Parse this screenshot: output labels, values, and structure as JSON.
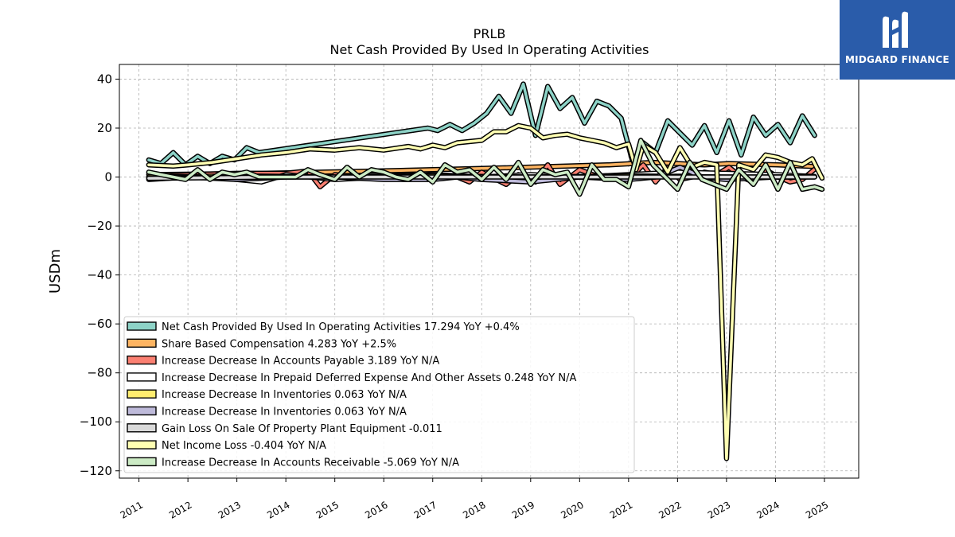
{
  "brand": {
    "name": "MIDGARD FINANCE",
    "color": "#2a5caa"
  },
  "chart_data": {
    "type": "line",
    "title": "PRLB",
    "subtitle": "Net Cash Provided By Used In Operating Activities",
    "ylabel": "USDm",
    "xlabel": "",
    "ylim": [
      -123,
      46
    ],
    "xlim": [
      2010.6,
      2025.7
    ],
    "yticks": [
      40,
      20,
      0,
      -20,
      -40,
      -60,
      -80,
      -100,
      -120
    ],
    "ytick_labels": [
      "40",
      "20",
      "0",
      "−20",
      "−40",
      "−60",
      "−80",
      "−100",
      "−120"
    ],
    "xticks": [
      2011,
      2012,
      2013,
      2014,
      2015,
      2016,
      2017,
      2018,
      2019,
      2020,
      2021,
      2022,
      2023,
      2024,
      2025
    ],
    "xtick_labels": [
      "2011",
      "2012",
      "2013",
      "2014",
      "2015",
      "2016",
      "2017",
      "2018",
      "2019",
      "2020",
      "2021",
      "2022",
      "2023",
      "2024",
      "2025"
    ],
    "grid": true,
    "legend_position": "lower-left",
    "series": [
      {
        "label": "Net Cash Provided By Used In Operating Activities  17.294 YoY +0.4%",
        "color": "#8dd3c7",
        "points": [
          [
            2011.2,
            7
          ],
          [
            2011.45,
            5.5
          ],
          [
            2011.7,
            10
          ],
          [
            2011.95,
            5
          ],
          [
            2012.2,
            8.5
          ],
          [
            2012.45,
            5.5
          ],
          [
            2012.7,
            8.5
          ],
          [
            2012.95,
            7
          ],
          [
            2013.2,
            12
          ],
          [
            2013.45,
            10
          ],
          [
            2016.9,
            20
          ],
          [
            2017.1,
            19
          ],
          [
            2017.35,
            21.5
          ],
          [
            2017.6,
            19
          ],
          [
            2017.85,
            22
          ],
          [
            2018.1,
            26
          ],
          [
            2018.35,
            33
          ],
          [
            2018.6,
            26
          ],
          [
            2018.85,
            38
          ],
          [
            2019.1,
            17
          ],
          [
            2019.35,
            37
          ],
          [
            2019.6,
            28
          ],
          [
            2019.85,
            32.5
          ],
          [
            2020.1,
            22
          ],
          [
            2020.35,
            31
          ],
          [
            2020.6,
            29
          ],
          [
            2020.85,
            24
          ],
          [
            2021.1,
            5
          ],
          [
            2021.3,
            14
          ],
          [
            2021.55,
            10
          ],
          [
            2021.8,
            23
          ],
          [
            2022.05,
            18
          ],
          [
            2022.3,
            13
          ],
          [
            2022.55,
            21
          ],
          [
            2022.8,
            10
          ],
          [
            2023.05,
            23
          ],
          [
            2023.3,
            9
          ],
          [
            2023.55,
            24.5
          ],
          [
            2023.8,
            17
          ],
          [
            2024.05,
            21.5
          ],
          [
            2024.3,
            14
          ],
          [
            2024.55,
            25
          ],
          [
            2024.8,
            17
          ]
        ]
      },
      {
        "label": "Share Based Compensation  4.283 YoY +2.5%",
        "color": "#fdb462",
        "points": [
          [
            2011.2,
            1
          ],
          [
            2013.5,
            1.5
          ],
          [
            2016,
            2.5
          ],
          [
            2018,
            3.5
          ],
          [
            2020.6,
            5
          ],
          [
            2021.5,
            6
          ],
          [
            2022.55,
            5
          ],
          [
            2023.05,
            5.5
          ],
          [
            2024.05,
            5
          ],
          [
            2024.8,
            4.3
          ]
        ]
      },
      {
        "label": "Increase Decrease In Accounts Payable  3.189 YoY N/A",
        "color": "#fb8072",
        "points": [
          [
            2011.2,
            0
          ],
          [
            2012,
            1
          ],
          [
            2013,
            1.5
          ],
          [
            2014,
            1.5
          ],
          [
            2014.45,
            2.5
          ],
          [
            2014.7,
            -4
          ],
          [
            2015,
            1
          ],
          [
            2015.5,
            0
          ],
          [
            2016.5,
            1
          ],
          [
            2017.5,
            0
          ],
          [
            2017.75,
            -2
          ],
          [
            2018,
            2
          ],
          [
            2018.5,
            -3
          ],
          [
            2018.75,
            1
          ],
          [
            2019.1,
            -2
          ],
          [
            2019.35,
            5
          ],
          [
            2019.6,
            -3
          ],
          [
            2020,
            3
          ],
          [
            2020.4,
            0
          ],
          [
            2020.85,
            -1
          ],
          [
            2021.1,
            1
          ],
          [
            2021.3,
            5
          ],
          [
            2021.55,
            -2
          ],
          [
            2021.8,
            4
          ],
          [
            2022.05,
            -1
          ],
          [
            2022.3,
            0
          ],
          [
            2022.55,
            2
          ],
          [
            2022.8,
            1
          ],
          [
            2023.05,
            4
          ],
          [
            2023.3,
            0
          ],
          [
            2023.55,
            -2
          ],
          [
            2023.8,
            3
          ],
          [
            2024.05,
            0
          ],
          [
            2024.3,
            -2
          ],
          [
            2024.55,
            -1
          ],
          [
            2024.8,
            3.2
          ]
        ]
      },
      {
        "label": "Increase Decrease In Prepaid Deferred Expense And Other Assets  0.248 YoY N/A",
        "color": "#ffffff",
        "points": [
          [
            2011.2,
            0
          ],
          [
            2012.5,
            0
          ],
          [
            2013,
            -1
          ],
          [
            2013.5,
            -2
          ],
          [
            2014,
            1
          ],
          [
            2015,
            -1
          ],
          [
            2016,
            0
          ],
          [
            2017,
            1
          ],
          [
            2018,
            0
          ],
          [
            2019,
            1
          ],
          [
            2020,
            0
          ],
          [
            2021,
            1
          ],
          [
            2022,
            2
          ],
          [
            2023,
            1.5
          ],
          [
            2024,
            1
          ],
          [
            2024.8,
            0.25
          ]
        ]
      },
      {
        "label": "Increase Decrease In Inventories  0.063 YoY N/A",
        "color": "#ffed6f",
        "points": [
          [
            2011.2,
            0
          ],
          [
            2013,
            0.5
          ],
          [
            2015,
            0
          ],
          [
            2017,
            0.5
          ],
          [
            2019,
            0
          ],
          [
            2021,
            0.5
          ],
          [
            2023,
            0
          ],
          [
            2024.8,
            0.06
          ]
        ]
      },
      {
        "label": "Increase Decrease In Inventories  0.063 YoY N/A",
        "color": "#bebada",
        "points": [
          [
            2011.2,
            -1
          ],
          [
            2012,
            0
          ],
          [
            2013,
            -1
          ],
          [
            2014,
            0
          ],
          [
            2015,
            0
          ],
          [
            2016,
            -1
          ],
          [
            2017,
            -1
          ],
          [
            2017.5,
            0
          ],
          [
            2018,
            -1
          ],
          [
            2019,
            -2
          ],
          [
            2020,
            0
          ],
          [
            2021,
            -1
          ],
          [
            2021.55,
            0
          ],
          [
            2022.05,
            4
          ],
          [
            2022.5,
            0
          ],
          [
            2023,
            -1
          ],
          [
            2024,
            0
          ],
          [
            2024.8,
            0.06
          ]
        ]
      },
      {
        "label": "Gain Loss On Sale Of Property Plant Equipment  -0.011",
        "color": "#d9d9d9",
        "points": [
          [
            2011.2,
            -0.5
          ],
          [
            2014,
            0
          ],
          [
            2017,
            0
          ],
          [
            2020,
            0
          ],
          [
            2022,
            0
          ],
          [
            2024.8,
            0
          ]
        ]
      },
      {
        "label": "Net Income Loss  -0.404 YoY N/A",
        "color": "#ffffb3",
        "points": [
          [
            2011.2,
            5
          ],
          [
            2011.7,
            4.5
          ],
          [
            2012,
            5
          ],
          [
            2012.5,
            6
          ],
          [
            2013,
            7.5
          ],
          [
            2013.5,
            9
          ],
          [
            2014,
            10
          ],
          [
            2014.5,
            11.5
          ],
          [
            2015,
            11
          ],
          [
            2015.5,
            12
          ],
          [
            2016,
            11
          ],
          [
            2016.5,
            12.5
          ],
          [
            2016.75,
            11.5
          ],
          [
            2017,
            13
          ],
          [
            2017.25,
            12
          ],
          [
            2017.5,
            14
          ],
          [
            2018,
            15
          ],
          [
            2018.25,
            18.5
          ],
          [
            2018.5,
            18.5
          ],
          [
            2018.75,
            21
          ],
          [
            2019,
            20
          ],
          [
            2019.25,
            16
          ],
          [
            2019.5,
            17
          ],
          [
            2019.75,
            17.5
          ],
          [
            2020,
            16
          ],
          [
            2020.25,
            15
          ],
          [
            2020.5,
            14
          ],
          [
            2020.75,
            12
          ],
          [
            2021,
            13.5
          ],
          [
            2021.15,
            3
          ],
          [
            2021.3,
            13
          ],
          [
            2021.55,
            10
          ],
          [
            2021.8,
            2
          ],
          [
            2022.05,
            12
          ],
          [
            2022.3,
            4
          ],
          [
            2022.55,
            6
          ],
          [
            2022.8,
            5
          ],
          [
            2023.0,
            -115
          ],
          [
            2023.25,
            5
          ],
          [
            2023.55,
            3
          ],
          [
            2023.8,
            9
          ],
          [
            2024.05,
            8
          ],
          [
            2024.3,
            6
          ],
          [
            2024.55,
            5
          ],
          [
            2024.75,
            7.5
          ],
          [
            2024.95,
            -0.4
          ]
        ]
      },
      {
        "label": "Increase Decrease In Accounts Receivable  -5.069 YoY N/A",
        "color": "#ccebc5",
        "points": [
          [
            2011.2,
            2
          ],
          [
            2011.45,
            1
          ],
          [
            2011.7,
            0
          ],
          [
            2011.95,
            -1
          ],
          [
            2012.2,
            3
          ],
          [
            2012.45,
            -1
          ],
          [
            2012.7,
            2
          ],
          [
            2012.95,
            1
          ],
          [
            2013.2,
            2
          ],
          [
            2013.45,
            0
          ],
          [
            2014.2,
            0
          ],
          [
            2014.45,
            3
          ],
          [
            2014.7,
            1
          ],
          [
            2015,
            -1
          ],
          [
            2015.25,
            4
          ],
          [
            2015.5,
            0
          ],
          [
            2015.75,
            3
          ],
          [
            2016,
            2
          ],
          [
            2016.25,
            0
          ],
          [
            2016.5,
            -1
          ],
          [
            2016.75,
            2
          ],
          [
            2017,
            -2
          ],
          [
            2017.25,
            5
          ],
          [
            2017.5,
            2
          ],
          [
            2017.75,
            3
          ],
          [
            2018,
            -1
          ],
          [
            2018.25,
            4
          ],
          [
            2018.5,
            -1
          ],
          [
            2018.75,
            6
          ],
          [
            2019,
            -3
          ],
          [
            2019.25,
            3
          ],
          [
            2019.5,
            1
          ],
          [
            2019.75,
            2
          ],
          [
            2020,
            -7
          ],
          [
            2020.25,
            5
          ],
          [
            2020.5,
            -1
          ],
          [
            2020.75,
            -1
          ],
          [
            2021.0,
            -4
          ],
          [
            2021.25,
            15
          ],
          [
            2021.5,
            5
          ],
          [
            2021.75,
            0
          ],
          [
            2022.0,
            -5
          ],
          [
            2022.25,
            6
          ],
          [
            2022.5,
            -1
          ],
          [
            2022.75,
            -3
          ],
          [
            2023.0,
            -5
          ],
          [
            2023.25,
            3
          ],
          [
            2023.55,
            -3
          ],
          [
            2023.8,
            5
          ],
          [
            2024.05,
            -5
          ],
          [
            2024.3,
            6
          ],
          [
            2024.55,
            -5
          ],
          [
            2024.8,
            -4
          ],
          [
            2024.95,
            -5
          ]
        ]
      }
    ]
  }
}
